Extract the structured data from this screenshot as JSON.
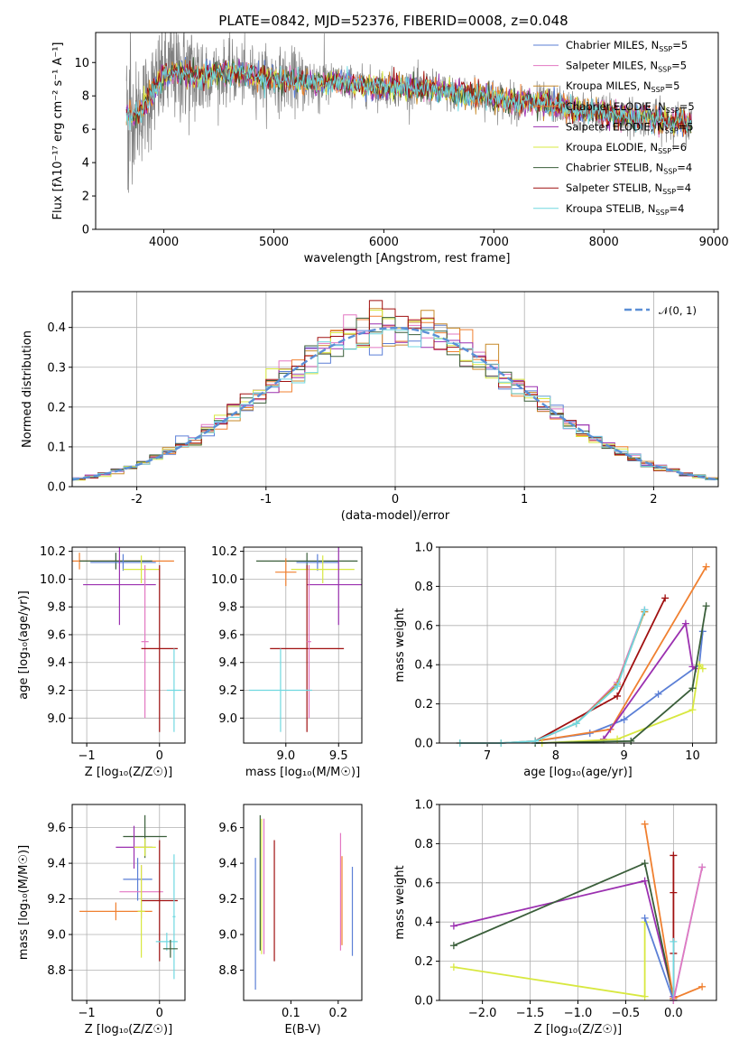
{
  "chart_data": [
    {
      "type": "line",
      "id": "spectrum",
      "title": "PLATE=0842, MJD=52376, FIBERID=0008, z=0.048",
      "xlabel": "wavelength [Angstrom, rest frame]",
      "ylabel": "Flux [fλ10⁻¹⁷ erg cm⁻² s⁻¹ A⁻¹]",
      "xlim": [
        3380,
        9040
      ],
      "ylim": [
        0,
        11.8
      ],
      "xticks": [
        4000,
        5000,
        6000,
        7000,
        8000,
        9000
      ],
      "yticks": [
        0,
        2,
        4,
        6,
        8,
        10
      ],
      "legend_position": "upper-right",
      "continuum": {
        "x": [
          3660,
          3750,
          3900,
          4000,
          4100,
          4200,
          4300,
          4400,
          4600,
          4800,
          5000,
          5200,
          5400,
          5600,
          5800,
          6000,
          6200,
          6400,
          6600,
          6800,
          7000,
          7200,
          7400,
          7600,
          7800,
          8000,
          8200,
          8400,
          8600,
          8800
        ],
        "y": [
          7.0,
          6.8,
          8.2,
          9.2,
          9.5,
          9.4,
          9.1,
          9.3,
          9.4,
          9.2,
          9.0,
          8.9,
          8.8,
          8.8,
          8.6,
          8.5,
          8.5,
          8.4,
          8.2,
          8.1,
          7.9,
          7.6,
          7.6,
          7.4,
          7.1,
          7.0,
          6.8,
          6.7,
          6.5,
          6.3
        ]
      },
      "series": [
        {
          "name": "Chabrier MILES, N_SSP=5",
          "color": "#5b7fd6"
        },
        {
          "name": "Salpeter MILES, N_SSP=5",
          "color": "#e377c2"
        },
        {
          "name": "Kroupa MILES, N_SSP=5",
          "color": "#c78a2a"
        },
        {
          "name": "Chabrier ELODIE, N_SSP=5",
          "color": "#f08030"
        },
        {
          "name": "Salpeter ELODIE, N_SSP=5",
          "color": "#9b30b0"
        },
        {
          "name": "Kroupa ELODIE, N_SSP=6",
          "color": "#d8e840"
        },
        {
          "name": "Chabrier STELIB, N_SSP=4",
          "color": "#3a5e3a"
        },
        {
          "name": "Salpeter STELIB, N_SSP=4",
          "color": "#a01010"
        },
        {
          "name": "Kroupa STELIB, N_SSP=4",
          "color": "#70d8e0"
        }
      ],
      "data_color": "#808080",
      "legend_entries": [
        {
          "base": "Chabrier MILES, N",
          "sub": "SSP",
          "end": "=5"
        },
        {
          "base": "Salpeter MILES, N",
          "sub": "SSP",
          "end": "=5"
        },
        {
          "base": "Kroupa MILES, N",
          "sub": "SSP",
          "end": "=5"
        },
        {
          "base": "Chabrier ELODIE, N",
          "sub": "SSP",
          "end": "=5"
        },
        {
          "base": "Salpeter ELODIE, N",
          "sub": "SSP",
          "end": "=5"
        },
        {
          "base": "Kroupa ELODIE, N",
          "sub": "SSP",
          "end": "=6"
        },
        {
          "base": "Chabrier STELIB, N",
          "sub": "SSP",
          "end": "=4"
        },
        {
          "base": "Salpeter STELIB, N",
          "sub": "SSP",
          "end": "=4"
        },
        {
          "base": "Kroupa STELIB, N",
          "sub": "SSP",
          "end": "=4"
        }
      ]
    },
    {
      "type": "histogram",
      "id": "residuals",
      "xlabel": "(data-model)/error",
      "ylabel": "Normed distribution",
      "xlim": [
        -2.5,
        2.5
      ],
      "ylim": [
        0,
        0.49
      ],
      "xticks": [
        -2,
        -1,
        0,
        1,
        2
      ],
      "yticks": [
        0.0,
        0.1,
        0.2,
        0.3,
        0.4
      ],
      "grid": true,
      "legend_position": "upper-right",
      "legend_label": "𝒩(0, 1)",
      "gaussian_color": "#5b8fd6",
      "bin_width": 0.1,
      "bin_range": [
        -2.5,
        2.5
      ]
    },
    {
      "type": "errorbar",
      "id": "age-vs-Z",
      "xlabel": "Z [log₁₀(Z/Z☉)]",
      "ylabel": "age  [log₁₀(age/yr)]",
      "xlim": [
        -1.2,
        0.35
      ],
      "ylim": [
        8.82,
        10.23
      ],
      "xticks": [
        -1,
        0
      ],
      "xticklabels": [
        "−1",
        "0"
      ],
      "yticks": [
        9.0,
        9.2,
        9.4,
        9.6,
        9.8,
        10.0,
        10.2
      ],
      "grid": true,
      "points": [
        {
          "x": -1.1,
          "xerr": 1.3,
          "y": 10.13,
          "yerr": 0.06,
          "color": "#f08030"
        },
        {
          "x": -0.6,
          "xerr": 0.5,
          "y": 10.13,
          "yerr": 0.06,
          "color": "#3a5e3a"
        },
        {
          "x": -0.5,
          "xerr": 0.45,
          "y": 10.12,
          "yerr": 0.06,
          "color": "#5b7fd6"
        },
        {
          "x": -0.55,
          "xerr": 0.5,
          "y": 9.96,
          "yerr": 0.29,
          "color": "#9b30b0"
        },
        {
          "x": -0.25,
          "xerr": 0.25,
          "y": 10.07,
          "yerr": 0.1,
          "color": "#d8e840"
        },
        {
          "x": -0.2,
          "xerr": 0.05,
          "y": 9.55,
          "yerr": 0.55,
          "color": "#e377c2"
        },
        {
          "x": 0.0,
          "xerr": 0.25,
          "y": 9.5,
          "yerr": 0.6,
          "color": "#a01010"
        },
        {
          "x": 0.2,
          "xerr": 0.1,
          "y": 9.2,
          "yerr": 0.3,
          "color": "#70d8e0"
        }
      ]
    },
    {
      "type": "errorbar",
      "id": "age-vs-mass",
      "xlabel": "mass [log₁₀(M/M☉)]",
      "xlim": [
        8.6,
        9.72
      ],
      "ylim": [
        8.82,
        10.23
      ],
      "xticks": [
        9.0,
        9.5
      ],
      "xticklabels": [
        "9.0",
        "9.5"
      ],
      "yticks": [
        9.0,
        9.2,
        9.4,
        9.6,
        9.8,
        10.0,
        10.2
      ],
      "grid": true,
      "points": [
        {
          "x": 9.2,
          "xerr": 0.48,
          "y": 10.13,
          "yerr": 0.06,
          "color": "#3a5e3a"
        },
        {
          "x": 9.3,
          "xerr": 0.2,
          "y": 10.12,
          "yerr": 0.06,
          "color": "#5b7fd6"
        },
        {
          "x": 9.35,
          "xerr": 0.3,
          "y": 10.07,
          "yerr": 0.1,
          "color": "#d8e840"
        },
        {
          "x": 9.5,
          "xerr": 0.3,
          "y": 9.96,
          "yerr": 0.29,
          "color": "#9b30b0"
        },
        {
          "x": 9.0,
          "xerr": 0.1,
          "y": 10.05,
          "yerr": 0.1,
          "color": "#f08030"
        },
        {
          "x": 9.2,
          "xerr": 0.35,
          "y": 9.5,
          "yerr": 0.6,
          "color": "#a01010"
        },
        {
          "x": 9.22,
          "xerr": 0.02,
          "y": 9.55,
          "yerr": 0.55,
          "color": "#e377c2"
        },
        {
          "x": 8.95,
          "xerr": 0.3,
          "y": 9.2,
          "yerr": 0.3,
          "color": "#70d8e0"
        }
      ]
    },
    {
      "type": "line",
      "id": "weight-vs-age",
      "xlabel": "age  [log₁₀(age/yr)]",
      "ylabel": "mass weight",
      "xlim": [
        6.3,
        10.35
      ],
      "ylim": [
        0,
        1.0
      ],
      "xticks": [
        7,
        8,
        9,
        10
      ],
      "yticks": [
        0.0,
        0.2,
        0.4,
        0.6,
        0.8,
        1.0
      ],
      "grid": true,
      "series": [
        {
          "color": "#5b7fd6",
          "x": [
            7.7,
            8.5,
            9.0,
            9.5,
            10.1,
            10.15
          ],
          "y": [
            0.01,
            0.05,
            0.12,
            0.25,
            0.4,
            0.57
          ]
        },
        {
          "color": "#e377c2",
          "x": [
            6.6,
            7.2,
            7.7,
            8.3,
            8.9,
            9.3
          ],
          "y": [
            0.0,
            0.0,
            0.01,
            0.1,
            0.31,
            0.68
          ]
        },
        {
          "color": "#c78a2a",
          "x": [
            6.6,
            7.2,
            7.7,
            8.3,
            8.9,
            9.3
          ],
          "y": [
            0.0,
            0.0,
            0.01,
            0.1,
            0.3,
            0.67
          ]
        },
        {
          "color": "#f08030",
          "x": [
            7.7,
            8.8,
            10.2
          ],
          "y": [
            0.01,
            0.07,
            0.9
          ]
        },
        {
          "color": "#9b30b0",
          "x": [
            8.7,
            9.9,
            10.0,
            10.05
          ],
          "y": [
            0.02,
            0.61,
            0.39,
            0.38
          ]
        },
        {
          "color": "#d8e840",
          "x": [
            7.8,
            8.9,
            10.0,
            10.1,
            10.15
          ],
          "y": [
            0.0,
            0.02,
            0.17,
            0.4,
            0.38
          ]
        },
        {
          "color": "#3a5e3a",
          "x": [
            7.7,
            9.1,
            10.0,
            10.2
          ],
          "y": [
            0.0,
            0.01,
            0.28,
            0.7
          ]
        },
        {
          "color": "#a01010",
          "x": [
            7.7,
            8.9,
            9.6
          ],
          "y": [
            0.01,
            0.24,
            0.74
          ]
        },
        {
          "color": "#70d8e0",
          "x": [
            6.6,
            7.2,
            7.7,
            8.3,
            8.9,
            9.3
          ],
          "y": [
            0.0,
            0.0,
            0.01,
            0.1,
            0.29,
            0.68
          ]
        }
      ]
    },
    {
      "type": "errorbar",
      "id": "mass-vs-Z",
      "xlabel": "Z [log₁₀(Z/Z☉)]",
      "ylabel": "mass [log₁₀(M/M☉)]",
      "xlim": [
        -1.2,
        0.35
      ],
      "ylim": [
        8.63,
        9.73
      ],
      "xticks": [
        -1,
        0
      ],
      "xticklabels": [
        "−1",
        "0"
      ],
      "yticks": [
        8.8,
        9.0,
        9.2,
        9.4,
        9.6
      ],
      "grid": true,
      "points": [
        {
          "x": -0.2,
          "xerr": 0.3,
          "y": 9.55,
          "yerr": 0.12,
          "color": "#3a5e3a"
        },
        {
          "x": -0.35,
          "xerr": 0.25,
          "y": 9.49,
          "yerr": 0.12,
          "color": "#9b30b0"
        },
        {
          "x": -0.2,
          "xerr": 0.15,
          "y": 9.49,
          "yerr": 0.05,
          "color": "#d8e840"
        },
        {
          "x": -0.3,
          "xerr": 0.2,
          "y": 9.31,
          "yerr": 0.12,
          "color": "#5b7fd6"
        },
        {
          "x": -0.25,
          "xerr": 0.3,
          "y": 9.24,
          "yerr": 0.15,
          "color": "#e377c2"
        },
        {
          "x": 0.0,
          "xerr": 0.25,
          "y": 9.19,
          "yerr": 0.34,
          "color": "#a01010"
        },
        {
          "x": -0.6,
          "xerr": 0.5,
          "y": 9.13,
          "yerr": 0.05,
          "color": "#f08030"
        },
        {
          "x": -0.25,
          "xerr": 0.05,
          "y": 9.13,
          "yerr": 0.26,
          "color": "#d8e840"
        },
        {
          "x": 0.1,
          "xerr": 0.15,
          "y": 8.96,
          "yerr": 0.05,
          "color": "#70d8e0"
        },
        {
          "x": 0.2,
          "xerr": 0.02,
          "y": 9.1,
          "yerr": 0.35,
          "color": "#70d8e0"
        },
        {
          "x": 0.15,
          "xerr": 0.1,
          "y": 8.92,
          "yerr": 0.05,
          "color": "#3a5e3a"
        }
      ]
    },
    {
      "type": "errorbar",
      "id": "mass-vs-EBV",
      "xlabel": "E(B-V)",
      "xlim": [
        0.0,
        0.25
      ],
      "ylim": [
        8.63,
        9.73
      ],
      "xticks": [
        0.1,
        0.2
      ],
      "xticklabels": [
        "0.1",
        "0.2"
      ],
      "yticks": [
        8.8,
        9.0,
        9.2,
        9.4,
        9.6
      ],
      "grid": false,
      "points": [
        {
          "x": 0.025,
          "y": 9.06,
          "yerr": 0.37,
          "color": "#5b7fd6"
        },
        {
          "x": 0.035,
          "y": 9.29,
          "yerr": 0.38,
          "color": "#3a5e3a"
        },
        {
          "x": 0.038,
          "y": 9.27,
          "yerr": 0.38,
          "color": "#d8e840"
        },
        {
          "x": 0.043,
          "y": 9.27,
          "yerr": 0.38,
          "color": "#e377c2"
        },
        {
          "x": 0.065,
          "y": 9.19,
          "yerr": 0.34,
          "color": "#a01010"
        },
        {
          "x": 0.205,
          "y": 9.24,
          "yerr": 0.33,
          "color": "#e377c2"
        },
        {
          "x": 0.208,
          "y": 9.19,
          "yerr": 0.25,
          "color": "#f08030"
        },
        {
          "x": 0.23,
          "y": 9.13,
          "yerr": 0.25,
          "color": "#5b7fd6"
        }
      ]
    },
    {
      "type": "line",
      "id": "weight-vs-Z",
      "xlabel": "Z [log₁₀(Z/Z☉)]",
      "ylabel": "mass weight",
      "xlim": [
        -2.45,
        0.45
      ],
      "ylim": [
        0,
        1.0
      ],
      "xticks": [
        -2.0,
        -1.5,
        -1.0,
        -0.5,
        0.0
      ],
      "xticklabels": [
        "−2.0",
        "−1.5",
        "−1.0",
        "−0.5",
        "0.0"
      ],
      "yticks": [
        0.0,
        0.2,
        0.4,
        0.6,
        0.8,
        1.0
      ],
      "grid": true,
      "series": [
        {
          "color": "#9b30b0",
          "x": [
            -2.3,
            -0.3,
            0.0
          ],
          "y": [
            0.38,
            0.61,
            0.02
          ]
        },
        {
          "color": "#3a5e3a",
          "x": [
            -2.3,
            -0.3,
            0.0
          ],
          "y": [
            0.28,
            0.7,
            0.01
          ]
        },
        {
          "color": "#d8e840",
          "x": [
            -2.3,
            -0.3,
            -0.3
          ],
          "y": [
            0.17,
            0.02,
            0.4
          ]
        },
        {
          "color": "#f08030",
          "x": [
            -0.3,
            0.0,
            0.3
          ],
          "y": [
            0.9,
            0.01,
            0.07
          ]
        },
        {
          "color": "#5b7fd6",
          "x": [
            -0.3,
            0.0
          ],
          "y": [
            0.42,
            0.0
          ]
        },
        {
          "color": "#a01010",
          "x": [
            0.0,
            0.0,
            0.0,
            0.0
          ],
          "y": [
            0.74,
            0.55,
            0.24,
            0.0
          ]
        },
        {
          "color": "#70d8e0",
          "x": [
            0.0,
            0.0,
            0.3
          ],
          "y": [
            0.3,
            0.0,
            0.68
          ]
        },
        {
          "color": "#e377c2",
          "x": [
            0.0,
            0.3
          ],
          "y": [
            0.0,
            0.68
          ]
        }
      ]
    }
  ]
}
